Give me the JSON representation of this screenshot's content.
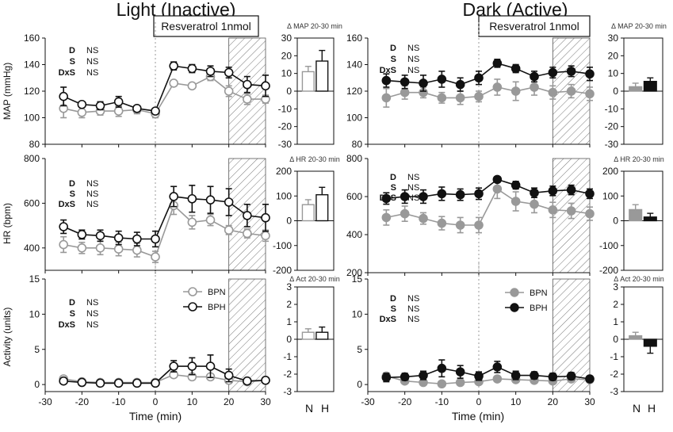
{
  "titles": {
    "left": "Light (Inactive)",
    "right": "Dark (Active)"
  },
  "treatment_label": "Resveratrol 1nmol",
  "xlabel": "Time (min)",
  "row_ylabels": [
    "MAP (mmHg)",
    "HR (bpm)",
    "Activity  (units)"
  ],
  "delta_titles": [
    "Δ MAP 20-30 min",
    "Δ HR 20-30 min",
    "Δ Act 20-30 min"
  ],
  "bar_categories": [
    "N",
    "H"
  ],
  "stats": [
    {
      "label": "D",
      "value": "NS"
    },
    {
      "label": "S",
      "value": "NS"
    },
    {
      "label": "DxS",
      "value": "NS"
    }
  ],
  "legend": {
    "bpn": "BPN",
    "bph": "BPH"
  },
  "colors": {
    "bpn": "#999999",
    "bph": "#111111",
    "bpn_dark_fill": "#999999",
    "bph_dark_fill": "#111111"
  },
  "chart_data": [
    {
      "panel": "light-map",
      "type": "line",
      "xlim": [
        -30,
        30
      ],
      "ylim": [
        80,
        160
      ],
      "x_ticks": [
        -30,
        -20,
        -10,
        0,
        10,
        20,
        30
      ],
      "y_ticks": [
        80,
        100,
        120,
        140,
        160
      ],
      "shaded_range": [
        20,
        30
      ],
      "x": [
        -25,
        -20,
        -15,
        -10,
        -5,
        0,
        5,
        10,
        15,
        20,
        25,
        30
      ],
      "series": [
        {
          "name": "BPN",
          "values": [
            107,
            104,
            105,
            105,
            106,
            103,
            126,
            124,
            131,
            120,
            114,
            114
          ],
          "err": [
            7,
            4,
            3,
            4,
            3,
            3,
            2,
            2,
            3,
            4,
            4,
            3
          ]
        },
        {
          "name": "BPH",
          "values": [
            116,
            110,
            109,
            112,
            107,
            105,
            139,
            137,
            135,
            134,
            125,
            124
          ],
          "err": [
            7,
            2,
            3,
            4,
            2,
            2,
            3,
            3,
            4,
            4,
            6,
            8
          ]
        }
      ]
    },
    {
      "panel": "light-map-delta",
      "type": "bar",
      "categories": [
        "N",
        "H"
      ],
      "ylim": [
        -30,
        30
      ],
      "y_ticks": [
        -30,
        -20,
        -10,
        0,
        10,
        20,
        30
      ],
      "values": [
        11,
        17
      ],
      "err": [
        3,
        6
      ]
    },
    {
      "panel": "light-hr",
      "type": "line",
      "xlim": [
        -30,
        30
      ],
      "ylim": [
        300,
        800
      ],
      "x_ticks": [
        -30,
        -20,
        -10,
        0,
        10,
        20,
        30
      ],
      "y_ticks": [
        400,
        600,
        800
      ],
      "shaded_range": [
        20,
        30
      ],
      "x": [
        -25,
        -20,
        -15,
        -10,
        -5,
        0,
        5,
        10,
        15,
        20,
        25,
        30
      ],
      "series": [
        {
          "name": "BPN",
          "values": [
            415,
            400,
            400,
            395,
            390,
            360,
            590,
            515,
            525,
            480,
            465,
            455
          ],
          "err": [
            35,
            25,
            30,
            30,
            30,
            25,
            40,
            30,
            25,
            20,
            20,
            25
          ]
        },
        {
          "name": "BPH",
          "values": [
            495,
            460,
            455,
            445,
            440,
            440,
            630,
            620,
            615,
            605,
            545,
            535
          ],
          "err": [
            30,
            20,
            25,
            30,
            30,
            35,
            45,
            60,
            60,
            60,
            50,
            60
          ]
        }
      ]
    },
    {
      "panel": "light-hr-delta",
      "type": "bar",
      "categories": [
        "N",
        "H"
      ],
      "ylim": [
        -200,
        200
      ],
      "y_ticks": [
        -200,
        -100,
        0,
        100,
        200
      ],
      "values": [
        65,
        105
      ],
      "err": [
        20,
        30
      ]
    },
    {
      "panel": "light-act",
      "type": "line",
      "xlim": [
        -30,
        30
      ],
      "ylim": [
        -1,
        15
      ],
      "x_ticks": [
        -30,
        -20,
        -10,
        0,
        10,
        20,
        30
      ],
      "y_ticks": [
        0,
        5,
        10,
        15
      ],
      "shaded_range": [
        20,
        30
      ],
      "x": [
        -25,
        -20,
        -15,
        -10,
        -5,
        0,
        5,
        10,
        15,
        20,
        25,
        30
      ],
      "series": [
        {
          "name": "BPN",
          "values": [
            0.8,
            0.4,
            0.3,
            0.3,
            0.3,
            0.3,
            1.4,
            1.1,
            1.1,
            0.6,
            0.4,
            0.6
          ],
          "err": [
            0.3,
            0.2,
            0.2,
            0.2,
            0.2,
            0.2,
            0.4,
            0.4,
            0.4,
            0.3,
            0.2,
            0.3
          ]
        },
        {
          "name": "BPH",
          "values": [
            0.5,
            0.3,
            0.2,
            0.2,
            0.2,
            0.2,
            2.6,
            2.6,
            2.6,
            1.3,
            0.5,
            0.6
          ],
          "err": [
            0.3,
            0.2,
            0.2,
            0.2,
            0.2,
            0.2,
            0.8,
            1.2,
            1.6,
            0.9,
            0.3,
            0.4
          ]
        }
      ]
    },
    {
      "panel": "light-act-delta",
      "type": "bar",
      "categories": [
        "N",
        "H"
      ],
      "ylim": [
        -3,
        3
      ],
      "y_ticks": [
        -3,
        -2,
        -1,
        0,
        1,
        2,
        3
      ],
      "values": [
        0.4,
        0.4
      ],
      "err": [
        0.2,
        0.3
      ]
    },
    {
      "panel": "dark-map",
      "type": "line",
      "xlim": [
        -30,
        30
      ],
      "ylim": [
        80,
        160
      ],
      "x_ticks": [
        -30,
        -20,
        -10,
        0,
        10,
        20,
        30
      ],
      "y_ticks": [
        80,
        100,
        120,
        140,
        160
      ],
      "shaded_range": [
        20,
        30
      ],
      "x": [
        -25,
        -20,
        -15,
        -10,
        -5,
        0,
        5,
        10,
        15,
        20,
        25,
        30
      ],
      "series": [
        {
          "name": "BPN",
          "values": [
            115,
            119,
            119,
            115,
            115,
            116,
            123,
            120,
            123,
            119,
            120,
            118
          ],
          "err": [
            7,
            5,
            4,
            4,
            5,
            4,
            6,
            7,
            6,
            5,
            5,
            5
          ]
        },
        {
          "name": "BPH",
          "values": [
            128,
            127,
            126,
            129,
            125,
            130,
            141,
            137,
            131,
            134,
            135,
            133
          ],
          "err": [
            5,
            5,
            6,
            6,
            5,
            5,
            3,
            3,
            4,
            4,
            4,
            5
          ]
        }
      ]
    },
    {
      "panel": "dark-map-delta",
      "type": "bar",
      "categories": [
        "N",
        "H"
      ],
      "ylim": [
        -30,
        30
      ],
      "y_ticks": [
        -30,
        -20,
        -10,
        0,
        10,
        20,
        30
      ],
      "values": [
        2.5,
        5.5
      ],
      "err": [
        2,
        2
      ]
    },
    {
      "panel": "dark-hr",
      "type": "line",
      "xlim": [
        -30,
        30
      ],
      "ylim": [
        200,
        800
      ],
      "x_ticks": [
        -30,
        -20,
        -10,
        0,
        10,
        20,
        30
      ],
      "y_ticks": [
        200,
        400,
        600,
        800
      ],
      "shaded_range": [
        20,
        30
      ],
      "x": [
        -25,
        -20,
        -15,
        -10,
        -5,
        0,
        5,
        10,
        15,
        20,
        25,
        30
      ],
      "series": [
        {
          "name": "BPN",
          "values": [
            490,
            510,
            485,
            460,
            450,
            450,
            640,
            575,
            560,
            530,
            525,
            510
          ],
          "err": [
            40,
            40,
            30,
            35,
            40,
            40,
            50,
            50,
            45,
            40,
            40,
            35
          ]
        },
        {
          "name": "BPH",
          "values": [
            590,
            600,
            600,
            615,
            610,
            615,
            690,
            660,
            620,
            630,
            635,
            615
          ],
          "err": [
            30,
            35,
            35,
            35,
            30,
            30,
            15,
            20,
            25,
            25,
            25,
            25
          ]
        }
      ]
    },
    {
      "panel": "dark-hr-delta",
      "type": "bar",
      "categories": [
        "N",
        "H"
      ],
      "ylim": [
        -200,
        200
      ],
      "y_ticks": [
        -200,
        -100,
        0,
        100,
        200
      ],
      "values": [
        45,
        15
      ],
      "err": [
        20,
        15
      ]
    },
    {
      "panel": "dark-act",
      "type": "line",
      "xlim": [
        -30,
        30
      ],
      "ylim": [
        -1,
        15
      ],
      "x_ticks": [
        -30,
        -20,
        -10,
        0,
        10,
        20,
        30
      ],
      "y_ticks": [
        0,
        5,
        10,
        15
      ],
      "shaded_range": [
        20,
        30
      ],
      "x": [
        -25,
        -20,
        -15,
        -10,
        -5,
        0,
        5,
        10,
        15,
        20,
        25,
        30
      ],
      "series": [
        {
          "name": "BPN",
          "values": [
            1.2,
            0.5,
            0.3,
            0.1,
            0.3,
            0.4,
            0.8,
            0.7,
            0.6,
            0.5,
            0.8,
            0.7
          ],
          "err": [
            0.4,
            0.2,
            0.2,
            0.2,
            0.2,
            0.2,
            0.3,
            0.3,
            0.3,
            0.2,
            0.3,
            0.2
          ]
        },
        {
          "name": "BPH",
          "values": [
            1.0,
            1.1,
            1.3,
            2.3,
            1.8,
            1.2,
            2.5,
            1.3,
            1.3,
            1.1,
            1.2,
            0.8
          ],
          "err": [
            0.6,
            0.5,
            0.6,
            1.2,
            0.9,
            0.6,
            0.8,
            0.6,
            0.5,
            0.5,
            0.5,
            0.4
          ]
        }
      ]
    },
    {
      "panel": "dark-act-delta",
      "type": "bar",
      "categories": [
        "N",
        "H"
      ],
      "ylim": [
        -3,
        3
      ],
      "y_ticks": [
        -3,
        -2,
        -1,
        0,
        1,
        2,
        3
      ],
      "values": [
        0.2,
        -0.4
      ],
      "err": [
        0.2,
        0.4
      ]
    }
  ]
}
